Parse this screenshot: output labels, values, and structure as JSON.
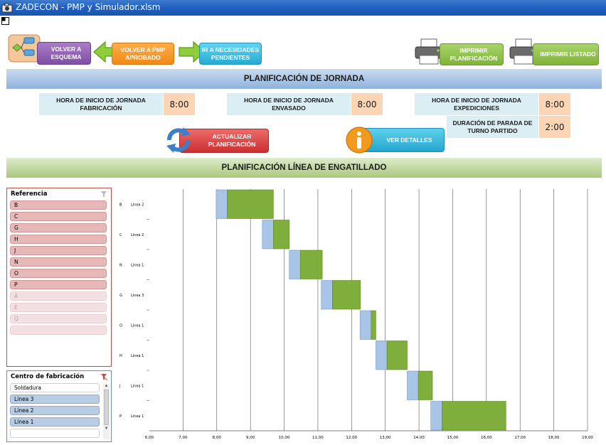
{
  "window": {
    "title": "ZADECON - PMP y Simulador.xlsm"
  },
  "nav": {
    "volver_esquema": "VOLVER A ESQUEMA",
    "volver_pmp": "VOLVER A PMP APROBADO",
    "necesidades": "IR A NECESIDADES PENDIENTES",
    "imprimir_planificacion": "IMPRIMIR PLANIFICACIÓN",
    "imprimir_listado": "IMPRIMIR LISTADO"
  },
  "header": {
    "title": "PLANIFICACIÓN DE JORNADA"
  },
  "jornada": {
    "fabricacion_label": "HORA DE INICIO DE JORNADA FABRICACIÓN",
    "fabricacion_value": "8:00",
    "envasado_label": "HORA DE INICIO DE JORNADA ENVASADO",
    "envasado_value": "8:00",
    "expediciones_label": "HORA DE INICIO DE JORNADA EXPEDICIONES",
    "expediciones_value": "8:00",
    "parada_label": "DURACIÓN DE PARADA DE TURNO PARTIDO",
    "parada_value": "2:00"
  },
  "actions": {
    "actualizar": "ACTUALIZAR PLANIFICACIÓN",
    "detalles": "VER DETALLES"
  },
  "section": {
    "title": "PLANIFICACIÓN LÍNEA DE ENGATILLADO"
  },
  "slicer_referencia": {
    "title": "Referencia",
    "items": [
      {
        "label": "B",
        "selected": true
      },
      {
        "label": "C",
        "selected": true
      },
      {
        "label": "G",
        "selected": true
      },
      {
        "label": "H",
        "selected": true
      },
      {
        "label": "J",
        "selected": true
      },
      {
        "label": "N",
        "selected": true
      },
      {
        "label": "O",
        "selected": true
      },
      {
        "label": "P",
        "selected": true
      },
      {
        "label": "A",
        "selected": false
      },
      {
        "label": "E",
        "selected": false
      },
      {
        "label": "Q",
        "selected": false
      },
      {
        "label": "",
        "selected": false
      }
    ]
  },
  "slicer_centro": {
    "title": "Centro de fabricación",
    "items": [
      {
        "label": "Soldadura",
        "selected": false
      },
      {
        "label": "Línea 3",
        "selected": true
      },
      {
        "label": "Línea 2",
        "selected": true
      },
      {
        "label": "Línea 1",
        "selected": true
      },
      {
        "label": "",
        "selected": false
      }
    ]
  },
  "icons": {
    "flowchart": "flowchart-icon",
    "arrow_left": "green-arrow-left-icon",
    "arrow_right": "green-arrow-right-icon",
    "printer": "printer-icon",
    "refresh": "refresh-icon",
    "info": "info-icon"
  },
  "colors": {
    "setup_bar": "#a8c4e6",
    "production_bar": "#7fae3c",
    "header_blue": "#8fb2dc",
    "header_green": "#a9c77c",
    "slicer_selected": "#e6b9b8"
  },
  "chart_data": {
    "type": "bar",
    "orientation": "horizontal-stacked-gantt",
    "x_ticks": [
      "6,00",
      "7,00",
      "8,00",
      "9,00",
      "10,00",
      "11,00",
      "12,00",
      "13,00",
      "14,00",
      "15,00",
      "16,00",
      "17,00",
      "18,00",
      "19,00"
    ],
    "xlim": [
      6,
      19
    ],
    "grid": true,
    "rows": [
      {
        "ref": "B",
        "line": "Línea 2",
        "start": 7.98,
        "setup": 0.33,
        "production": 1.37
      },
      {
        "ref": "C",
        "line": "Línea 2",
        "start": 9.35,
        "setup": 0.33,
        "production": 0.47
      },
      {
        "ref": "N",
        "line": "Línea 1",
        "start": 10.15,
        "setup": 0.33,
        "production": 0.65
      },
      {
        "ref": "G",
        "line": "Línea 3",
        "start": 11.1,
        "setup": 0.33,
        "production": 0.83
      },
      {
        "ref": "O",
        "line": "Línea 1",
        "start": 12.25,
        "setup": 0.33,
        "production": 0.14
      },
      {
        "ref": "H",
        "line": "Línea 1",
        "start": 12.72,
        "setup": 0.33,
        "production": 0.6
      },
      {
        "ref": "J",
        "line": "Línea 1",
        "start": 13.65,
        "setup": 0.33,
        "production": 0.42
      },
      {
        "ref": "P",
        "line": "Línea 1",
        "start": 14.35,
        "setup": 0.33,
        "production": 1.9
      }
    ]
  }
}
